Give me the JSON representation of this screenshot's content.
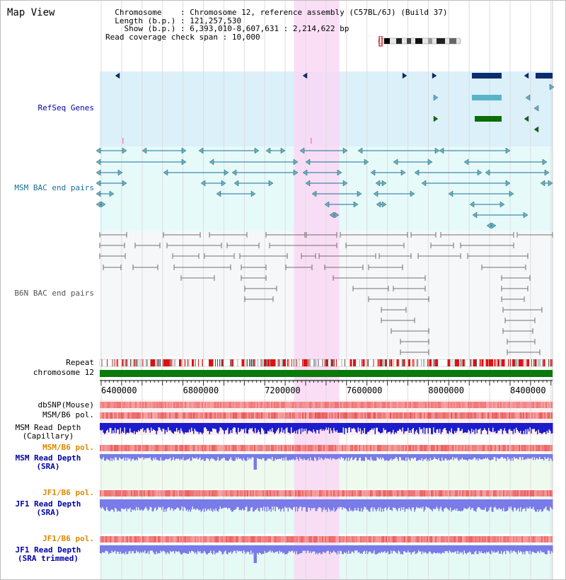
{
  "view_title": "Map View",
  "info": {
    "row1_key": "Chromosome",
    "row1_val": "Chromosome 12, reference assembly (C57BL/6J) (Build 37)",
    "row2_key": "Length (b.p.)",
    "row2_val": "121,257,530",
    "row3_key": "Show (b.p.)",
    "row3_val": "6,393,010-8,607,631 : 2,214,622 bp",
    "row4_key": "Read coverage check span",
    "row4_val": "10,000"
  },
  "tracks": {
    "refseq": "RefSeq Genes",
    "msm_bac": "MSM BAC end pairs",
    "b6n_bac": "B6N BAC end pairs",
    "repeat": "Repeat",
    "chromosome": "chromosome 12",
    "dbsnp": "dbSNP(Mouse)",
    "msm_pol1": "MSM/B6 pol.",
    "msm_depth_cap_1": "MSM Read Depth",
    "msm_depth_cap_2": "(Capillary)",
    "msm_pol2": "MSM/B6 pol.",
    "msm_depth_sra_1": "MSM Read Depth",
    "msm_depth_sra_2": "(SRA)",
    "jf1_pol1": "JF1/B6 pol.",
    "jf1_depth_sra_1": "JF1 Read Depth",
    "jf1_depth_sra_2": "(SRA)",
    "jf1_pol2": "JF1/B6 pol.",
    "jf1_depth_trim_1": "JF1 Read Depth",
    "jf1_depth_trim_2": "(SRA trimmed)"
  },
  "axis": {
    "start": 6393010,
    "end": 8607631,
    "ticks": [
      "6400000",
      "6800000",
      "7200000",
      "7600000",
      "8000000",
      "8400000"
    ]
  },
  "highlight_region": [
    7343000,
    7565000
  ],
  "colors": {
    "refseq_band": "#dcf0fa",
    "bac_band": "#e6fafa",
    "highlight": "#f9d8f4",
    "msm_track": "#1a6f9a",
    "gene_teal": "#5ab4c8",
    "gene_navy": "#0b2d6e",
    "gene_green": "#0a6e0a",
    "b6n_track": "#707070",
    "chromosome": "#0a7a0a",
    "depth_blue": "#1c1ccc",
    "depth_purple": "#7a7ae8",
    "pol_red": "#e84040",
    "label_blue": "#0000aa",
    "label_orange": "#dd8800"
  }
}
